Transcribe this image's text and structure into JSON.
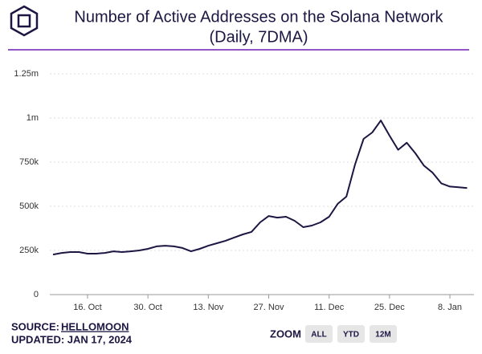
{
  "chart_data": {
    "type": "line",
    "title": "Number of Active Addresses on the Solana Network",
    "subtitle": "(Daily, 7DMA)",
    "categories": [
      null,
      null,
      null,
      null,
      "16. Oct",
      null,
      null,
      null,
      null,
      null,
      null,
      "30. Oct",
      null,
      null,
      null,
      null,
      null,
      null,
      "13. Nov",
      null,
      null,
      null,
      null,
      null,
      null,
      "27. Nov",
      null,
      null,
      null,
      null,
      null,
      null,
      "11. Dec",
      null,
      null,
      null,
      null,
      null,
      null,
      "25. Dec",
      null,
      null,
      null,
      null,
      null,
      null,
      "8. Jan",
      null,
      null
    ],
    "series": [
      {
        "name": "Active Addresses",
        "color": "#1b1642",
        "values": [
          227000,
          236000,
          241000,
          241000,
          232000,
          232000,
          236000,
          245000,
          241000,
          245000,
          250000,
          259000,
          273000,
          277000,
          273000,
          264000,
          245000,
          259000,
          277000,
          291000,
          305000,
          323000,
          341000,
          355000,
          409000,
          445000,
          436000,
          441000,
          418000,
          382000,
          391000,
          409000,
          441000,
          514000,
          555000,
          736000,
          882000,
          918000,
          986000,
          900000,
          820000,
          860000,
          800000,
          730000,
          690000,
          630000,
          612000,
          608000,
          603000
        ]
      }
    ],
    "ylim": [
      0,
      1250000
    ],
    "yticks": [
      0,
      {
        "value": 250000,
        "label": "250k"
      },
      {
        "value": 500000,
        "label": "500k"
      },
      {
        "value": 750000,
        "label": "750k"
      },
      {
        "value": 1000000,
        "label": "1m"
      },
      {
        "value": 1250000,
        "label": "1.25m"
      }
    ],
    "grid": true,
    "source_label": "SOURCE:",
    "source": "HELLOMOON",
    "updated": "UPDATED: JAN 17, 2024",
    "zoom_label": "ZOOM",
    "zoom_buttons": [
      "ALL",
      "YTD",
      "12M"
    ]
  }
}
